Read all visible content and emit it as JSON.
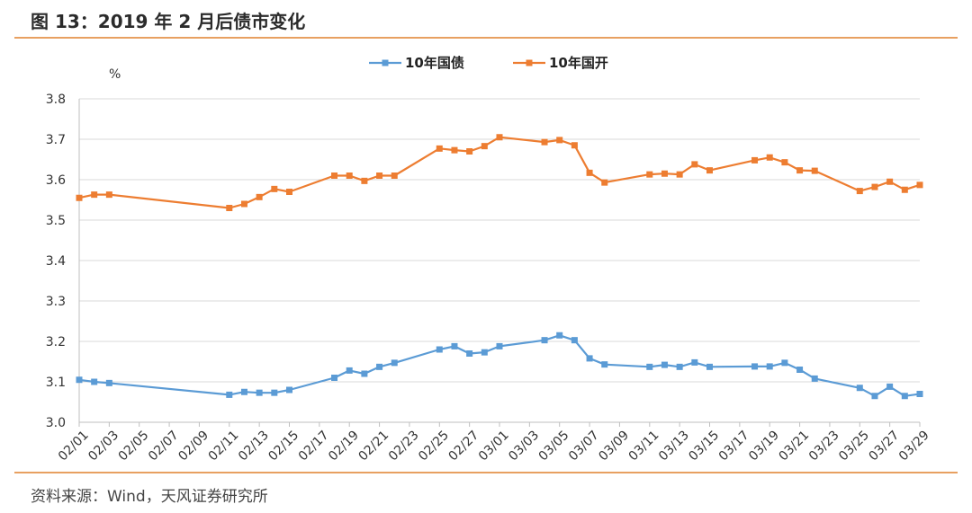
{
  "header": {
    "title": "图 13：2019 年 2 月后债市变化"
  },
  "footer": {
    "source": "资料来源：Wind，天风证券研究所"
  },
  "chart_data": {
    "type": "line",
    "ylabel": "%",
    "ylim": [
      3.0,
      3.8
    ],
    "yticks": [
      "3.0",
      "3.1",
      "3.2",
      "3.3",
      "3.4",
      "3.5",
      "3.6",
      "3.7",
      "3.8"
    ],
    "xtick_labels": [
      "02/01",
      "02/03",
      "02/05",
      "02/07",
      "02/09",
      "02/11",
      "02/13",
      "02/15",
      "02/17",
      "02/19",
      "02/21",
      "02/23",
      "02/25",
      "02/27",
      "03/01",
      "03/03",
      "03/05",
      "03/07",
      "03/09",
      "03/11",
      "03/13",
      "03/15",
      "03/17",
      "03/19",
      "03/21",
      "03/23",
      "03/25",
      "03/27",
      "03/29"
    ],
    "grid": "horizontal",
    "legend": "top-center",
    "series": [
      {
        "name": "10年国债",
        "color": "#5b9bd5",
        "points": [
          [
            "02/01",
            3.105
          ],
          [
            "02/02",
            3.1
          ],
          [
            "02/03",
            3.097
          ],
          [
            "02/11",
            3.068
          ],
          [
            "02/12",
            3.075
          ],
          [
            "02/13",
            3.073
          ],
          [
            "02/14",
            3.073
          ],
          [
            "02/15",
            3.08
          ],
          [
            "02/18",
            3.11
          ],
          [
            "02/19",
            3.128
          ],
          [
            "02/20",
            3.12
          ],
          [
            "02/21",
            3.137
          ],
          [
            "02/22",
            3.147
          ],
          [
            "02/25",
            3.18
          ],
          [
            "02/26",
            3.188
          ],
          [
            "02/27",
            3.17
          ],
          [
            "02/28",
            3.173
          ],
          [
            "03/01",
            3.188
          ],
          [
            "03/04",
            3.203
          ],
          [
            "03/05",
            3.215
          ],
          [
            "03/06",
            3.203
          ],
          [
            "03/07",
            3.158
          ],
          [
            "03/08",
            3.143
          ],
          [
            "03/11",
            3.137
          ],
          [
            "03/12",
            3.142
          ],
          [
            "03/13",
            3.137
          ],
          [
            "03/14",
            3.148
          ],
          [
            "03/15",
            3.137
          ],
          [
            "03/18",
            3.138
          ],
          [
            "03/19",
            3.138
          ],
          [
            "03/20",
            3.147
          ],
          [
            "03/21",
            3.13
          ],
          [
            "03/22",
            3.108
          ],
          [
            "03/25",
            3.085
          ],
          [
            "03/26",
            3.065
          ],
          [
            "03/27",
            3.088
          ],
          [
            "03/28",
            3.065
          ],
          [
            "03/29",
            3.07
          ]
        ]
      },
      {
        "name": "10年国开",
        "color": "#ed7d31",
        "points": [
          [
            "02/01",
            3.555
          ],
          [
            "02/02",
            3.563
          ],
          [
            "02/03",
            3.563
          ],
          [
            "02/11",
            3.53
          ],
          [
            "02/12",
            3.54
          ],
          [
            "02/13",
            3.557
          ],
          [
            "02/14",
            3.577
          ],
          [
            "02/15",
            3.57
          ],
          [
            "02/18",
            3.61
          ],
          [
            "02/19",
            3.61
          ],
          [
            "02/20",
            3.597
          ],
          [
            "02/21",
            3.61
          ],
          [
            "02/22",
            3.61
          ],
          [
            "02/25",
            3.677
          ],
          [
            "02/26",
            3.673
          ],
          [
            "02/27",
            3.67
          ],
          [
            "02/28",
            3.683
          ],
          [
            "03/01",
            3.705
          ],
          [
            "03/04",
            3.693
          ],
          [
            "03/05",
            3.698
          ],
          [
            "03/06",
            3.685
          ],
          [
            "03/07",
            3.617
          ],
          [
            "03/08",
            3.593
          ],
          [
            "03/11",
            3.613
          ],
          [
            "03/12",
            3.615
          ],
          [
            "03/13",
            3.613
          ],
          [
            "03/14",
            3.638
          ],
          [
            "03/15",
            3.623
          ],
          [
            "03/18",
            3.648
          ],
          [
            "03/19",
            3.655
          ],
          [
            "03/20",
            3.643
          ],
          [
            "03/21",
            3.623
          ],
          [
            "03/22",
            3.622
          ],
          [
            "03/25",
            3.572
          ],
          [
            "03/26",
            3.582
          ],
          [
            "03/27",
            3.595
          ],
          [
            "03/28",
            3.575
          ],
          [
            "03/29",
            3.587
          ]
        ]
      }
    ]
  }
}
